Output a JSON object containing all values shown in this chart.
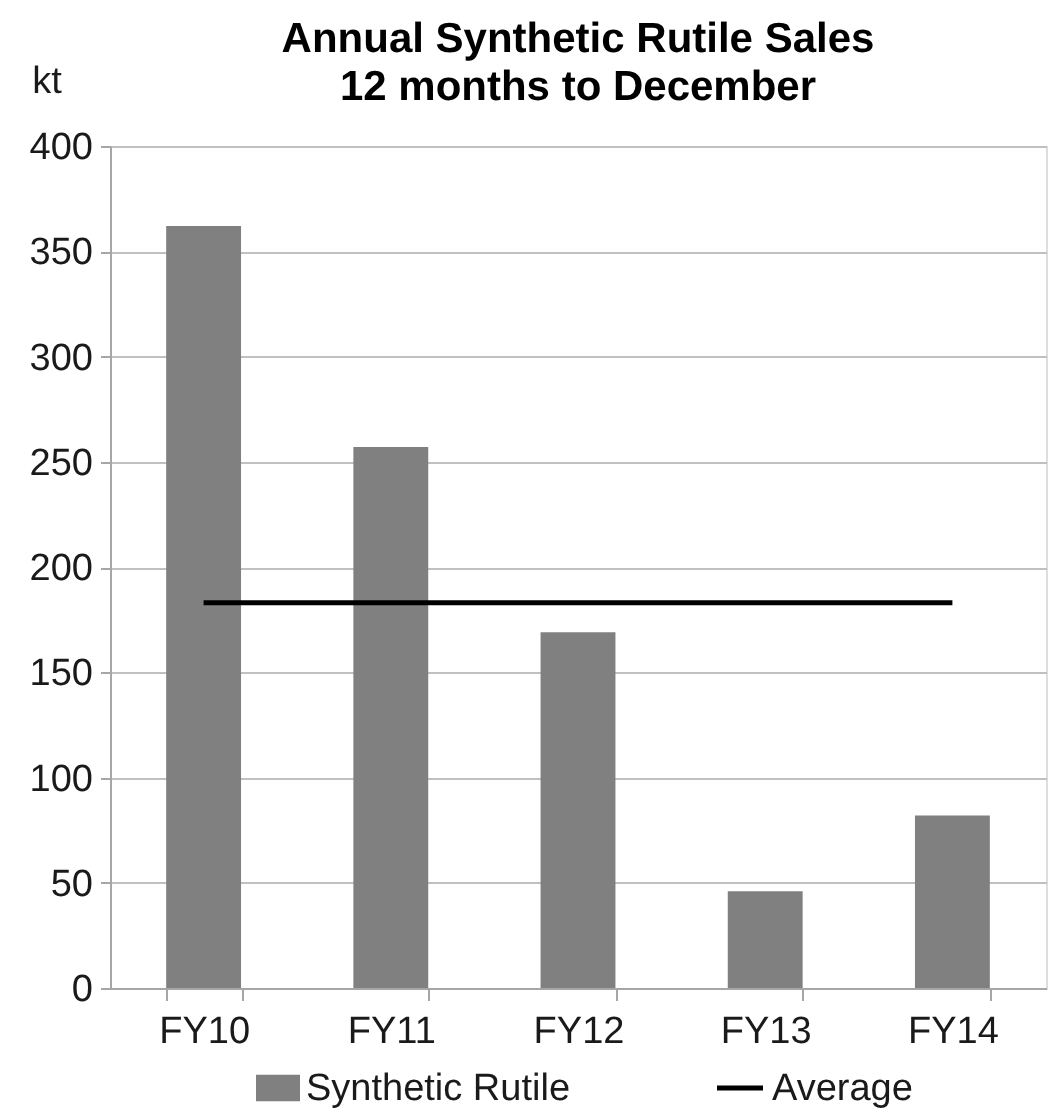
{
  "chart_data": {
    "type": "bar",
    "title": "Annual Synthetic Rutile Sales",
    "subtitle": "12 months to December",
    "ylabel": "kt",
    "categories": [
      "FY10",
      "FY11",
      "FY12",
      "FY13",
      "FY14"
    ],
    "series": [
      {
        "name": "Synthetic Rutile",
        "color": "#808080",
        "values": [
          362,
          257,
          169,
          46,
          82
        ]
      },
      {
        "name": "Average",
        "type": "line",
        "color": "#000000",
        "values": [
          183,
          183,
          183,
          183,
          183
        ]
      }
    ],
    "ylim": [
      0,
      400
    ],
    "yticks": [
      0,
      50,
      100,
      150,
      200,
      250,
      300,
      350,
      400
    ],
    "grid": "y",
    "legend": "bottom"
  }
}
